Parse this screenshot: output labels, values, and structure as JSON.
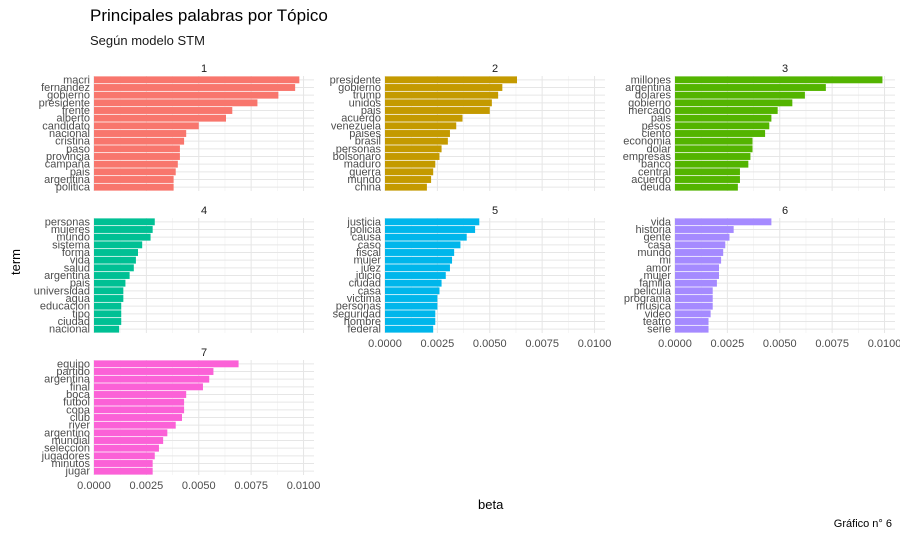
{
  "title": "Principales palabras por Tópico",
  "subtitle": "Según modelo STM",
  "caption": "Gráfico n° 6",
  "chart_data": {
    "type": "bar",
    "orientation": "horizontal",
    "xlabel": "beta",
    "ylabel": "term",
    "xlim": [
      0,
      0.0105
    ],
    "xticks": [
      "0.0000",
      "0.0025",
      "0.0050",
      "0.0075",
      "0.0100"
    ],
    "facets": [
      {
        "name": "1",
        "color": "#F8766D",
        "terms": [
          "macri",
          "fernandez",
          "gobierno",
          "presidente",
          "frente",
          "alberto",
          "candidato",
          "nacional",
          "cristina",
          "paso",
          "provincia",
          "campaña",
          "pais",
          "argentina",
          "politica"
        ],
        "values": [
          0.0098,
          0.0096,
          0.0088,
          0.0078,
          0.0066,
          0.0063,
          0.005,
          0.0044,
          0.0043,
          0.0041,
          0.0041,
          0.004,
          0.0039,
          0.0038,
          0.0038
        ]
      },
      {
        "name": "2",
        "color": "#C49A00",
        "terms": [
          "presidente",
          "gobierno",
          "trump",
          "unidos",
          "pais",
          "acuerdo",
          "venezuela",
          "paises",
          "brasil",
          "personas",
          "bolsonaro",
          "maduro",
          "guerra",
          "mundo",
          "china"
        ],
        "values": [
          0.0063,
          0.0056,
          0.0054,
          0.0051,
          0.005,
          0.0037,
          0.0034,
          0.0031,
          0.003,
          0.0027,
          0.0026,
          0.0024,
          0.0023,
          0.0022,
          0.002
        ]
      },
      {
        "name": "3",
        "color": "#53B400",
        "terms": [
          "millones",
          "argentina",
          "dolares",
          "gobierno",
          "mercado",
          "pais",
          "pesos",
          "ciento",
          "economia",
          "dolar",
          "empresas",
          "banco",
          "central",
          "acuerdo",
          "deuda"
        ],
        "values": [
          0.0099,
          0.0072,
          0.0062,
          0.0056,
          0.0049,
          0.0046,
          0.0045,
          0.0043,
          0.0037,
          0.0037,
          0.0036,
          0.0035,
          0.0031,
          0.0031,
          0.003
        ]
      },
      {
        "name": "4",
        "color": "#00C094",
        "terms": [
          "personas",
          "mujeres",
          "mundo",
          "sistema",
          "forma",
          "vida",
          "salud",
          "argentina",
          "pais",
          "universidad",
          "agua",
          "educacion",
          "tipo",
          "ciudad",
          "nacional"
        ],
        "values": [
          0.0029,
          0.0028,
          0.0027,
          0.0023,
          0.0021,
          0.002,
          0.0019,
          0.0017,
          0.0015,
          0.0014,
          0.0014,
          0.0013,
          0.0013,
          0.0013,
          0.0012
        ]
      },
      {
        "name": "5",
        "color": "#00B6EB",
        "terms": [
          "justicia",
          "policia",
          "causa",
          "caso",
          "fiscal",
          "mujer",
          "juez",
          "juicio",
          "ciudad",
          "casa",
          "victima",
          "personas",
          "seguridad",
          "hombre",
          "federal"
        ],
        "values": [
          0.0045,
          0.0043,
          0.0039,
          0.0036,
          0.0033,
          0.0032,
          0.0031,
          0.0029,
          0.0027,
          0.0026,
          0.0025,
          0.0025,
          0.0024,
          0.0024,
          0.0023
        ]
      },
      {
        "name": "6",
        "color": "#A58AFF",
        "terms": [
          "vida",
          "historia",
          "gente",
          "casa",
          "mundo",
          "mi",
          "amor",
          "mujer",
          "familia",
          "pelicula",
          "programa",
          "musica",
          "video",
          "teatro",
          "serie"
        ],
        "values": [
          0.0046,
          0.0028,
          0.0026,
          0.0024,
          0.0023,
          0.0022,
          0.0021,
          0.0021,
          0.002,
          0.0018,
          0.0018,
          0.0018,
          0.0017,
          0.0016,
          0.0016
        ]
      },
      {
        "name": "7",
        "color": "#FB61D7",
        "terms": [
          "equipo",
          "partido",
          "argentina",
          "final",
          "boca",
          "futbol",
          "copa",
          "club",
          "river",
          "argentino",
          "mundial",
          "seleccion",
          "jugadores",
          "minutos",
          "jugar"
        ],
        "values": [
          0.0069,
          0.0057,
          0.0055,
          0.0052,
          0.0044,
          0.0043,
          0.0043,
          0.0042,
          0.0039,
          0.0035,
          0.0033,
          0.0031,
          0.0029,
          0.0028,
          0.0028
        ]
      }
    ]
  }
}
